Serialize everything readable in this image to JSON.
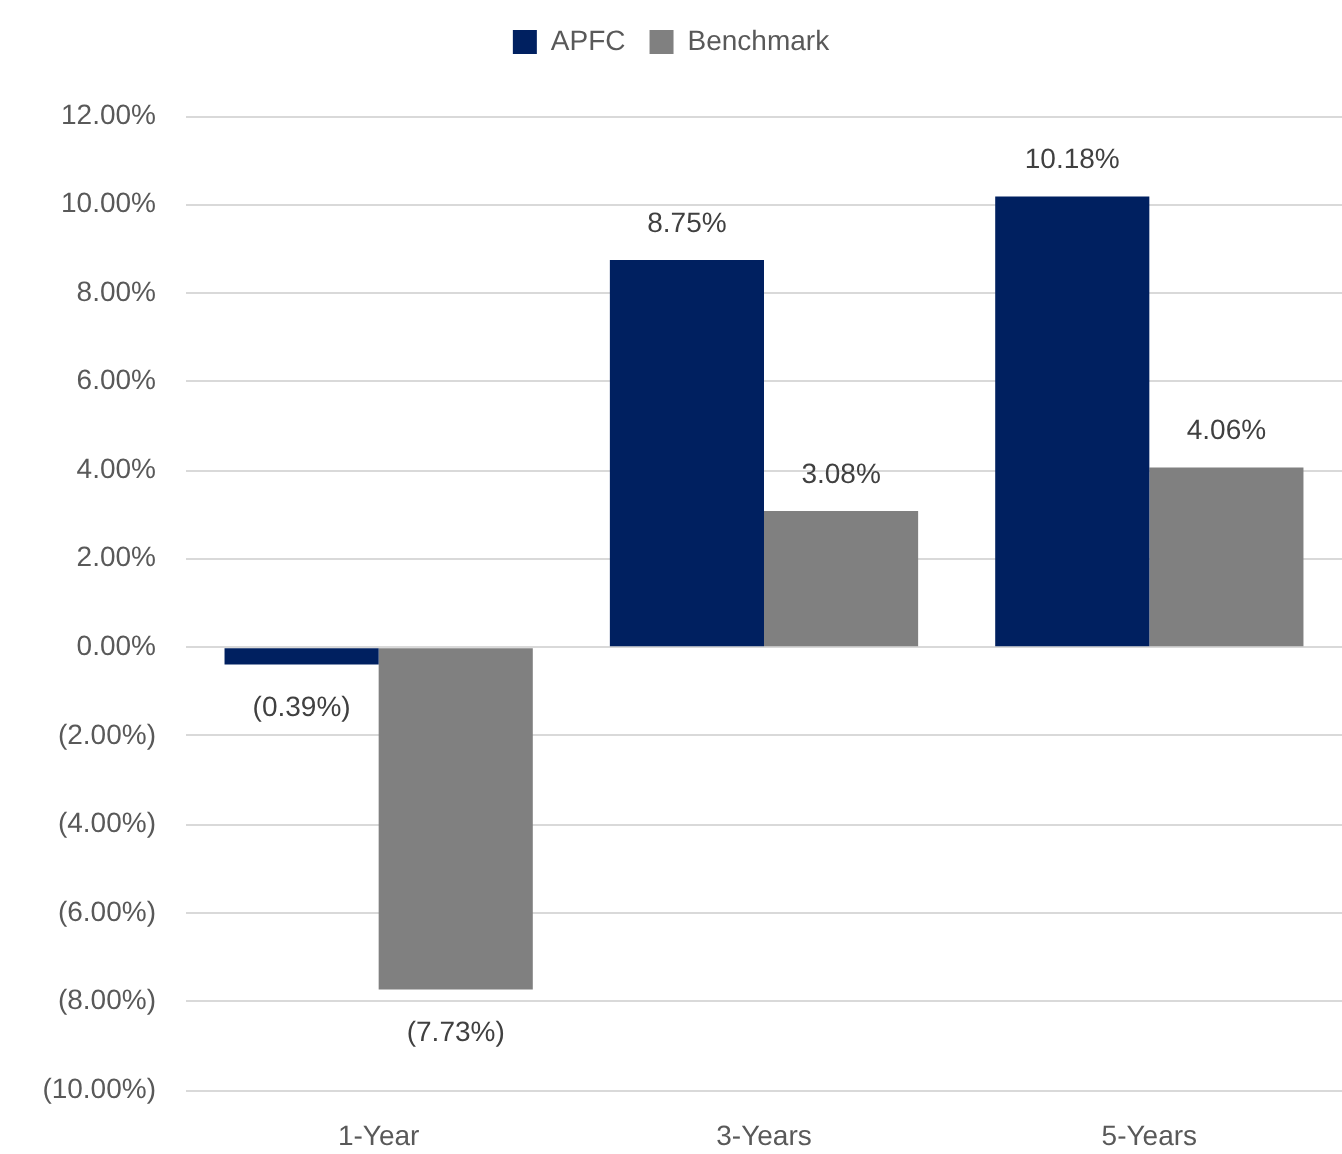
{
  "chart_data": {
    "type": "bar",
    "categories": [
      "1-Year",
      "3-Years",
      "5-Years"
    ],
    "series": [
      {
        "name": "APFC",
        "color": "#002060",
        "values": [
          -0.39,
          8.75,
          10.18
        ],
        "value_labels": [
          "(0.39%)",
          "8.75%",
          "10.18%"
        ]
      },
      {
        "name": "Benchmark",
        "color": "#808080",
        "values": [
          -7.73,
          3.08,
          4.06
        ],
        "value_labels": [
          "(7.73%)",
          "3.08%",
          "4.06%"
        ]
      }
    ],
    "ylim": [
      -10,
      12
    ],
    "yticks": [
      {
        "value": -10,
        "label": "(10.00%)"
      },
      {
        "value": -8,
        "label": "(8.00%)"
      },
      {
        "value": -6,
        "label": "(6.00%)"
      },
      {
        "value": -4,
        "label": "(4.00%)"
      },
      {
        "value": -2,
        "label": "(2.00%)"
      },
      {
        "value": 0,
        "label": "0.00%"
      },
      {
        "value": 2,
        "label": "2.00%"
      },
      {
        "value": 4,
        "label": "4.00%"
      },
      {
        "value": 6,
        "label": "6.00%"
      },
      {
        "value": 8,
        "label": "8.00%"
      },
      {
        "value": 10,
        "label": "10.00%"
      },
      {
        "value": 12,
        "label": "12.00%"
      }
    ],
    "grid": "y",
    "legend": "top"
  }
}
